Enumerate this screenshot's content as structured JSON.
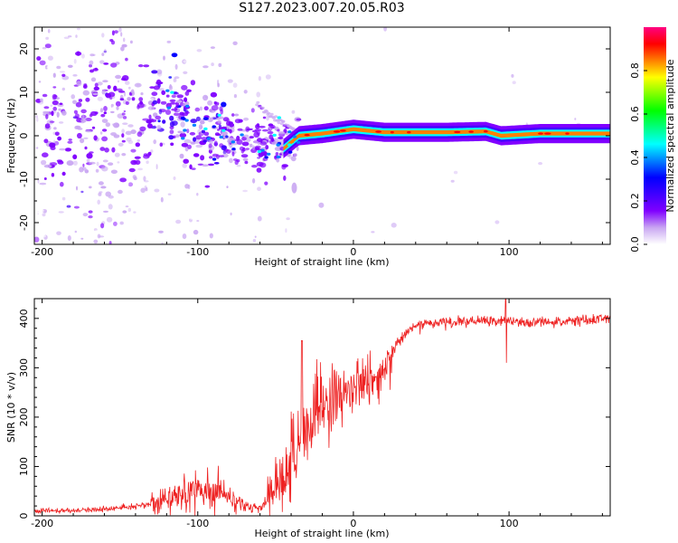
{
  "title": "S127.2023.007.20.05.R03",
  "chart_data": [
    {
      "type": "heatmap",
      "title": "S127.2023.007.20.05.R03",
      "xlabel": "Height of straight line (km)",
      "ylabel": "Frequency (Hz)",
      "xlim": [
        -205,
        165
      ],
      "ylim": [
        -25,
        25
      ],
      "xticks": [
        -200,
        -100,
        0,
        100
      ],
      "yticks": [
        -20,
        -10,
        0,
        10,
        20
      ],
      "colorbar": {
        "label": "Normalized spectral amplitude",
        "range": [
          0,
          1
        ],
        "ticks": [
          "0.0",
          "0.2",
          "0.4",
          "0.6",
          "0.8"
        ],
        "colors": [
          "#ffffff",
          "#c9a6f2",
          "#8000ff",
          "#4000ff",
          "#0000ff",
          "#0080ff",
          "#00ffff",
          "#00ff80",
          "#00ff00",
          "#80ff00",
          "#ffff00",
          "#ff8000",
          "#ff0000",
          "#ff0080"
        ]
      },
      "ridge": {
        "description": "dominant Doppler frequency trace",
        "x": [
          -200,
          -150,
          -120,
          -100,
          -80,
          -60,
          -45,
          -35,
          -20,
          0,
          20,
          60,
          85,
          95,
          120,
          165
        ],
        "y": [
          3,
          6,
          5,
          2,
          0,
          -2,
          -3,
          0,
          0.5,
          1.5,
          0.8,
          0.8,
          1,
          0,
          0.5,
          0.5
        ]
      }
    },
    {
      "type": "line",
      "xlabel": "Height of straight line (km)",
      "ylabel": "SNR (10 * v/v)",
      "xlim": [
        -205,
        165
      ],
      "ylim": [
        0,
        440
      ],
      "xticks": [
        -200,
        -100,
        0,
        100
      ],
      "yticks": [
        0,
        100,
        200,
        300,
        400
      ],
      "series": [
        {
          "name": "SNR",
          "color": "#ee2222",
          "x": [
            -205,
            -180,
            -160,
            -140,
            -130,
            -120,
            -110,
            -100,
            -90,
            -80,
            -70,
            -60,
            -52,
            -46,
            -40,
            -35,
            -30,
            -25,
            -20,
            -15,
            -10,
            -5,
            0,
            5,
            10,
            15,
            20,
            25,
            30,
            35,
            40,
            50,
            60,
            70,
            80,
            90,
            100,
            110,
            120,
            130,
            140,
            150,
            165
          ],
          "y": [
            10,
            10,
            14,
            18,
            24,
            35,
            40,
            50,
            55,
            40,
            20,
            15,
            40,
            70,
            110,
            140,
            170,
            200,
            220,
            235,
            245,
            252,
            258,
            262,
            268,
            275,
            290,
            330,
            360,
            375,
            385,
            390,
            392,
            393,
            394,
            394,
            395,
            390,
            392,
            393,
            395,
            397,
            400
          ]
        }
      ],
      "annotations": [
        {
          "x": 98,
          "y_min": 310,
          "y_max": 440,
          "note": "spike"
        },
        {
          "x": -33,
          "y": 355,
          "note": "peak"
        }
      ]
    }
  ]
}
